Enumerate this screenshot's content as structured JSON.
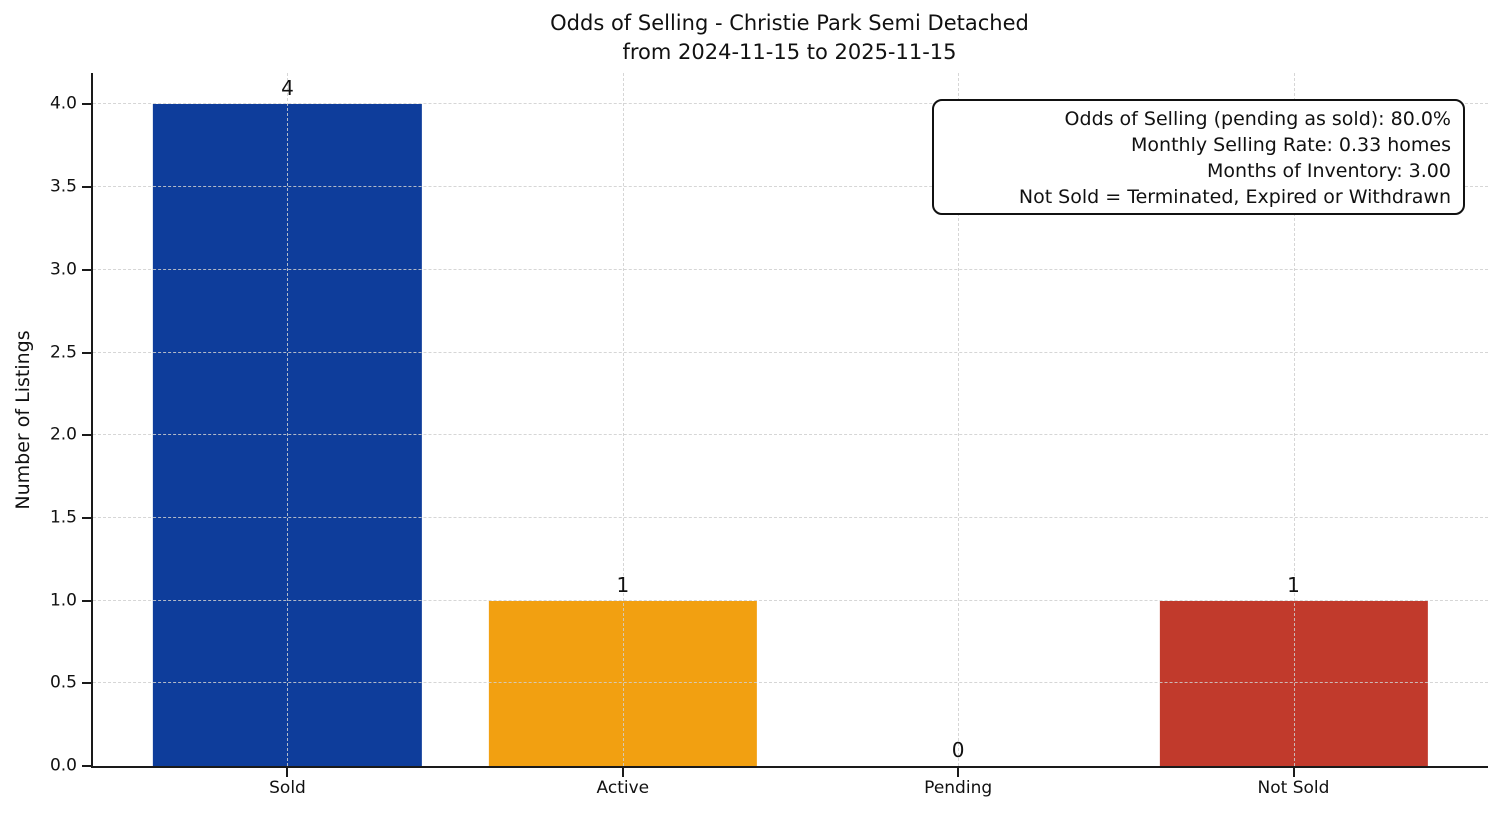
{
  "chart_data": {
    "type": "bar",
    "title": "Odds of Selling - Christie Park Semi Detached",
    "subtitle": "from 2024-11-15 to 2025-11-15",
    "ylabel": "Number of Listings",
    "xlabel": "",
    "categories": [
      "Sold",
      "Active",
      "Pending",
      "Not Sold"
    ],
    "values": [
      4,
      1,
      0,
      1
    ],
    "bar_value_labels": [
      "4",
      "1",
      "0",
      "1"
    ],
    "bar_colors": [
      "#0e3d9b",
      "#f2a011",
      "none",
      "#c13a2c"
    ],
    "bar_width": 0.8,
    "yticks": [
      0.0,
      0.5,
      1.0,
      1.5,
      2.0,
      2.5,
      3.0,
      3.5,
      4.0
    ],
    "ytick_labels": [
      "0.0",
      "0.5",
      "1.0",
      "1.5",
      "2.0",
      "2.5",
      "3.0",
      "3.5",
      "4.0"
    ],
    "ylim": [
      0,
      4.19
    ],
    "xlim": [
      -0.58,
      3.58
    ],
    "grid": "dashed light-gray gridlines on both axes, drawn over bars",
    "legend": "none",
    "annotation": {
      "lines": [
        "Odds of Selling (pending as sold): 80.0%",
        "Monthly Selling Rate: 0.33 homes",
        "Months of Inventory: 3.00",
        "Not Sold = Terminated, Expired or Withdrawn"
      ]
    },
    "colors": {
      "sold_bar": "#0e3d9b",
      "active_bar": "#f2a011",
      "not_sold_bar": "#c13a2c",
      "gridline": "#cfcfcf",
      "axis": "#1a1a1a",
      "background": "#ffffff"
    }
  }
}
